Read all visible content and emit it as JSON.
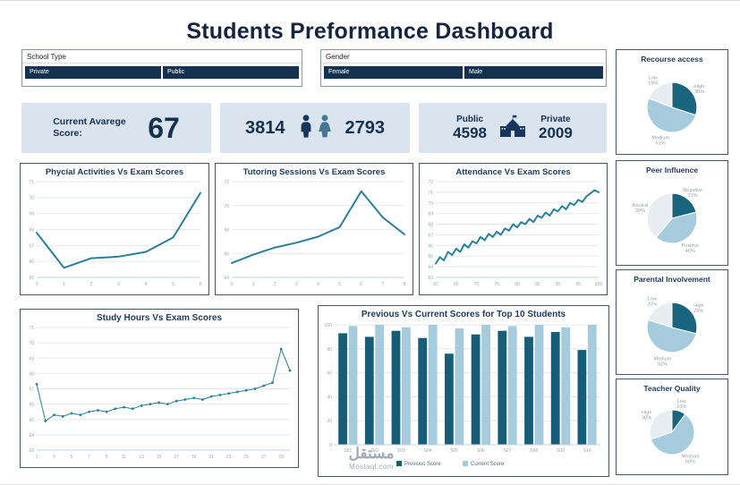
{
  "title": "Students Preformance Dashboard",
  "watermark": {
    "name": "مستقل",
    "site": "Mostaql.com"
  },
  "filters": {
    "school_type": {
      "label": "School Type",
      "options": [
        "Private",
        "Public"
      ]
    },
    "gender": {
      "label": "Gender",
      "options": [
        "Female",
        "Male"
      ]
    }
  },
  "kpis": {
    "average": {
      "label": "Current Avarege Score:",
      "value": "67"
    },
    "genders": {
      "male_count": "3814",
      "female_count": "2793"
    },
    "schools": {
      "public_label": "Public",
      "public_count": "4598",
      "private_label": "Private",
      "private_count": "2009"
    }
  },
  "colors": {
    "navy": "#14314f",
    "teal": "#2a7f9b",
    "bar_dark": "#175d78",
    "bar_light": "#a6cbdd",
    "pale": "#e8edf2",
    "card_bg": "#d9e4ee"
  },
  "chart_data": [
    {
      "type": "line",
      "title": "Phycial Activities Vs Exam Scores",
      "x": [
        0,
        1,
        2,
        3,
        4,
        5,
        6
      ],
      "values": [
        67.8,
        65.6,
        66.2,
        66.3,
        66.6,
        67.5,
        70.3
      ],
      "ylim": [
        65,
        71
      ],
      "yticks": [
        65,
        66,
        67,
        68,
        69,
        70,
        71
      ],
      "xtick_every": 1,
      "color": "#2a7f9b",
      "grid": true
    },
    {
      "type": "line",
      "title": "Tutoring Sessions Vs Exam Scores",
      "x": [
        0,
        1,
        2,
        3,
        4,
        5,
        6,
        7,
        8
      ],
      "values": [
        65.2,
        65.9,
        66.5,
        66.9,
        67.4,
        68.2,
        71.2,
        69.0,
        67.6
      ],
      "ylim": [
        64,
        72
      ],
      "yticks": [
        64,
        66,
        68,
        70,
        72
      ],
      "xtick_every": 1,
      "color": "#2a7f9b",
      "grid": true
    },
    {
      "type": "line",
      "title": "Attendance Vs Exam Scores",
      "x": [
        60,
        61,
        62,
        63,
        64,
        65,
        66,
        67,
        68,
        69,
        70,
        71,
        72,
        73,
        74,
        75,
        76,
        77,
        78,
        79,
        80,
        81,
        82,
        83,
        84,
        85,
        86,
        87,
        88,
        89,
        90,
        91,
        92,
        93,
        94,
        95,
        96,
        97,
        98,
        99,
        100
      ],
      "values": [
        64.3,
        64.9,
        64.6,
        65.4,
        65.1,
        65.7,
        65.4,
        66.1,
        65.8,
        66.4,
        66.2,
        66.8,
        66.5,
        67.1,
        66.8,
        67.3,
        67.0,
        67.6,
        67.4,
        68.0,
        67.7,
        68.2,
        68.0,
        68.5,
        68.2,
        68.8,
        68.6,
        69.1,
        68.8,
        69.4,
        69.2,
        69.7,
        69.4,
        70.0,
        69.8,
        70.3,
        70.1,
        70.6,
        70.9,
        71.2,
        71.0
      ],
      "ylim": [
        63,
        72
      ],
      "yticks": [
        63,
        64,
        65,
        66,
        67,
        68,
        69,
        70,
        71,
        72
      ],
      "xtick_every": 5,
      "color": "#2a7f9b",
      "grid": true
    },
    {
      "type": "line",
      "title": "Study Hours Vs Exam Scores",
      "markers": true,
      "x": [
        1,
        2,
        3,
        4,
        5,
        6,
        7,
        8,
        9,
        10,
        11,
        12,
        13,
        14,
        15,
        16,
        17,
        18,
        19,
        20,
        21,
        22,
        23,
        24,
        25,
        26,
        27,
        28,
        29,
        30
      ],
      "values": [
        67.3,
        64.9,
        65.3,
        65.2,
        65.4,
        65.3,
        65.5,
        65.6,
        65.5,
        65.7,
        65.8,
        65.7,
        65.9,
        66.0,
        66.1,
        66.0,
        66.2,
        66.3,
        66.4,
        66.3,
        66.5,
        66.6,
        66.7,
        66.8,
        66.9,
        67.0,
        67.2,
        67.4,
        69.6,
        68.2
      ],
      "ylim": [
        63,
        71
      ],
      "yticks": [
        63,
        64,
        65,
        66,
        67,
        68,
        69,
        70,
        71
      ],
      "xtick_every": 2,
      "color": "#2a7f9b",
      "grid": true
    },
    {
      "type": "bar",
      "title": "Previous Vs Current Scores for Top 10 Students",
      "categories": [
        "S01",
        "S02",
        "S03",
        "S04",
        "S05",
        "S06",
        "S07",
        "S08",
        "S09",
        "S10"
      ],
      "series": [
        {
          "name": "Previous Score",
          "color": "#175d78",
          "values": [
            93,
            90,
            95,
            89,
            76,
            92,
            95,
            90,
            94,
            79
          ]
        },
        {
          "name": "Current Score",
          "color": "#a6cbdd",
          "values": [
            99,
            100,
            98,
            100,
            97,
            100,
            99,
            100,
            98,
            100
          ]
        }
      ],
      "ylim": [
        0,
        100
      ],
      "yticks": [
        0,
        20,
        40,
        60,
        80,
        100
      ],
      "legend_position": "bottom",
      "grid": true
    },
    {
      "type": "pie",
      "title": "Recourse access",
      "slices": [
        {
          "label": "High",
          "pct": 30,
          "color": "#19647e"
        },
        {
          "label": "Medium",
          "pct": 51,
          "color": "#a6cbdd"
        },
        {
          "label": "Low",
          "pct": 19,
          "color": "#e8edf2"
        }
      ]
    },
    {
      "type": "pie",
      "title": "Peer Influence",
      "slices": [
        {
          "label": "Negative",
          "pct": 21,
          "color": "#19647e"
        },
        {
          "label": "Positive",
          "pct": 40,
          "color": "#a6cbdd"
        },
        {
          "label": "Neutral",
          "pct": 39,
          "color": "#e8edf2"
        }
      ]
    },
    {
      "type": "pie",
      "title": "Parental Involvement",
      "slices": [
        {
          "label": "High",
          "pct": 29,
          "color": "#19647e"
        },
        {
          "label": "Medium",
          "pct": 51,
          "color": "#a6cbdd"
        },
        {
          "label": "Low",
          "pct": 20,
          "color": "#e8edf2"
        }
      ]
    },
    {
      "type": "pie",
      "title": "Teacher Quality",
      "slices": [
        {
          "label": "Low",
          "pct": 10,
          "color": "#19647e"
        },
        {
          "label": "Medium",
          "pct": 60,
          "color": "#a6cbdd"
        },
        {
          "label": "High",
          "pct": 30,
          "color": "#e8edf2"
        }
      ]
    }
  ]
}
